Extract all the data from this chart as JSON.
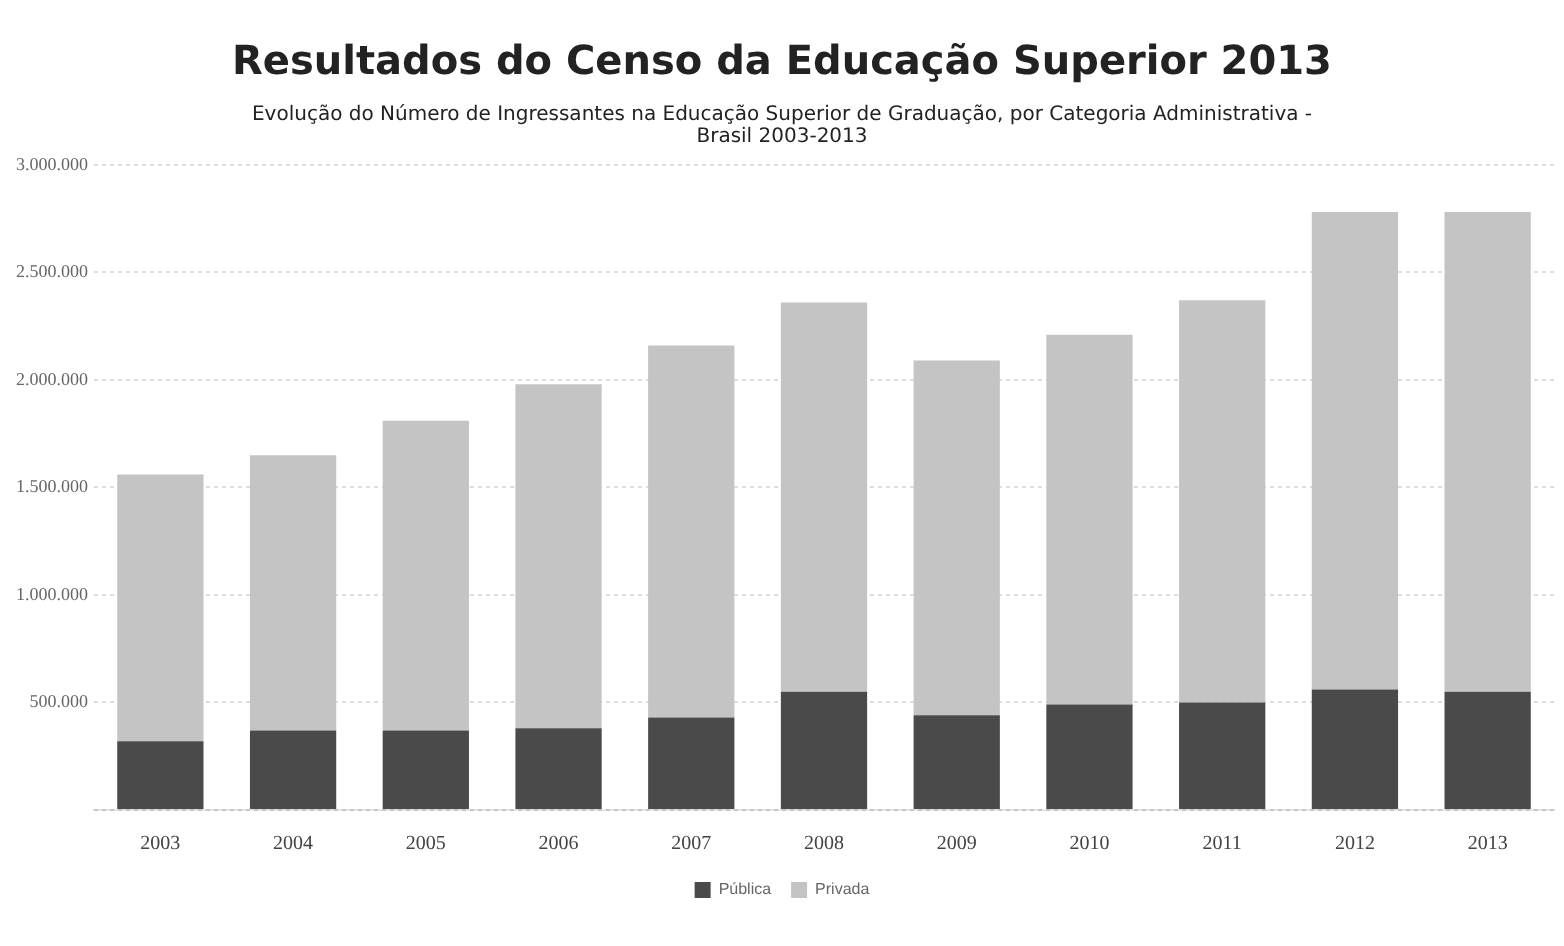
{
  "chart_data": {
    "type": "bar",
    "title": "Resultados do Censo da Educação Superior 2013",
    "subtitle": "Evolução do Número de Ingressantes na Educação Superior de Graduação, por Categoria Administrativa - Brasil 2003-2013",
    "categories": [
      "2003",
      "2004",
      "2005",
      "2006",
      "2007",
      "2008",
      "2009",
      "2010",
      "2011",
      "2012",
      "2013"
    ],
    "stacked": true,
    "series": [
      {
        "name": "Pública",
        "color": "#4a4a4a",
        "values": [
          320000,
          370000,
          370000,
          380000,
          430000,
          550000,
          440000,
          490000,
          500000,
          560000,
          550000
        ]
      },
      {
        "name": "Privada",
        "color": "#c4c4c4",
        "values": [
          1240000,
          1280000,
          1440000,
          1600000,
          1730000,
          1810000,
          1650000,
          1720000,
          1870000,
          2220000,
          2230000
        ]
      }
    ],
    "ylim": [
      0,
      3000000
    ],
    "yticks": [
      {
        "value": 0,
        "label": null
      },
      {
        "value": 500000,
        "label": "500.000"
      },
      {
        "value": 1000000,
        "label": "1.000.000"
      },
      {
        "value": 1500000,
        "label": "1.500.000"
      },
      {
        "value": 2000000,
        "label": "2.000.000"
      },
      {
        "value": 2500000,
        "label": "2.500.000"
      },
      {
        "value": 3000000,
        "label": "3.000.000"
      }
    ],
    "grid": "y",
    "legend": "bottom"
  }
}
